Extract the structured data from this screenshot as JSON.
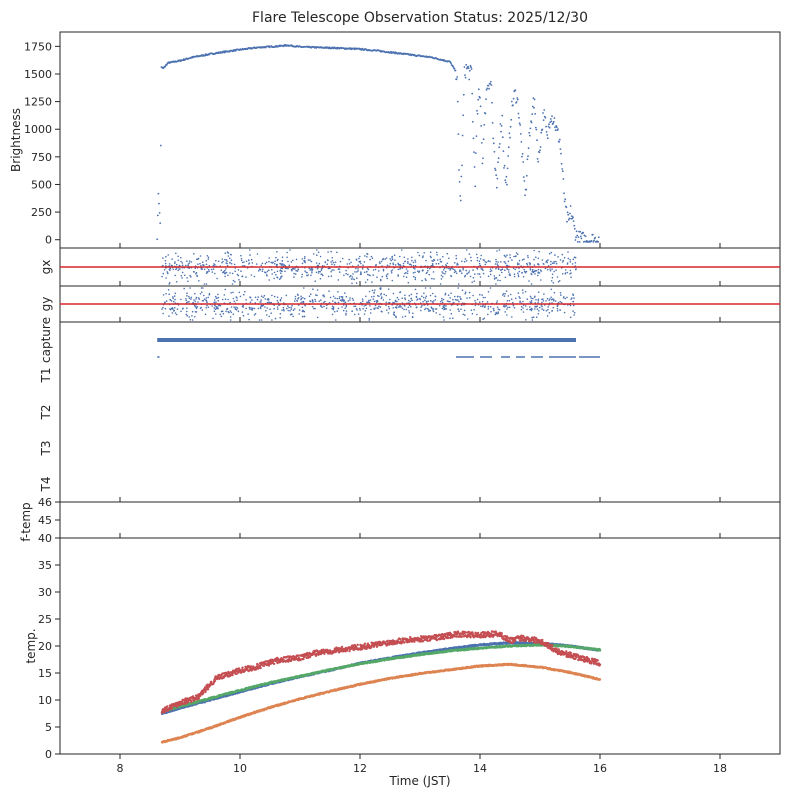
{
  "title": "Flare Telescope Observation Status: 2025/12/30",
  "chart_data": [
    {
      "panel": "brightness",
      "type": "scatter",
      "title": "Flare Telescope Observation Status: 2025/12/30",
      "ylabel": "Brightness",
      "xlim": [
        7,
        19
      ],
      "ylim": [
        -75,
        1880
      ],
      "yticks": [
        0,
        250,
        500,
        750,
        1000,
        1250,
        1500,
        1750
      ],
      "color": "#4c72b0",
      "series": [
        {
          "x": [
            8.62,
            8.64,
            8.67,
            8.69,
            8.72,
            8.8,
            9.0,
            9.2,
            9.5,
            9.8,
            10.0,
            10.3,
            10.6,
            10.8,
            11.0,
            11.3,
            11.6,
            12.0,
            12.3,
            12.6,
            12.9,
            13.2,
            13.5,
            13.62,
            13.65,
            13.68,
            13.71,
            13.74,
            13.77,
            13.8,
            13.83,
            13.86,
            13.89,
            13.92,
            13.95,
            13.98,
            14.01,
            14.04,
            14.07,
            14.1,
            14.13,
            14.16,
            14.19,
            14.22,
            14.25,
            14.28,
            14.31,
            14.34,
            14.37,
            14.4,
            14.43,
            14.46,
            14.49,
            14.52,
            14.55,
            14.58,
            14.61,
            14.64,
            14.67,
            14.7,
            14.73,
            14.76,
            14.79,
            14.82,
            14.85,
            14.88,
            14.91,
            14.94,
            14.97,
            15.0,
            15.03,
            15.06,
            15.09,
            15.12,
            15.15,
            15.18,
            15.21,
            15.24,
            15.27,
            15.3,
            15.33,
            15.36,
            15.39,
            15.42,
            15.45,
            15.48,
            15.51,
            15.54,
            15.57,
            15.6,
            15.63,
            15.66,
            15.69,
            15.72,
            15.75,
            15.78,
            15.81,
            15.84,
            15.87,
            15.9,
            15.93,
            15.96,
            15.99
          ],
          "y": [
            10,
            420,
            150,
            1560,
            1550,
            1600,
            1620,
            1650,
            1680,
            1705,
            1720,
            1740,
            1750,
            1760,
            1745,
            1740,
            1735,
            1725,
            1710,
            1690,
            1670,
            1650,
            1610,
            1500,
            600,
            350,
            900,
            1500,
            1550,
            1540,
            1500,
            1520,
            900,
            550,
            1100,
            1300,
            1250,
            700,
            1000,
            1300,
            1420,
            1430,
            1400,
            900,
            650,
            450,
            800,
            1000,
            1100,
            700,
            500,
            600,
            900,
            1150,
            1250,
            1320,
            1300,
            1200,
            1000,
            800,
            550,
            400,
            700,
            900,
            1050,
            1250,
            1200,
            1000,
            700,
            850,
            1000,
            1150,
            1050,
            900,
            1050,
            1150,
            1100,
            1080,
            1000,
            950,
            900,
            700,
            500,
            300,
            200,
            150,
            250,
            200,
            100,
            50,
            20,
            10,
            5,
            5,
            3,
            2,
            2,
            1,
            1,
            0,
            0,
            0,
            0
          ]
        }
      ]
    },
    {
      "panel": "gx",
      "type": "scatter",
      "ylabel": "gx",
      "xlim": [
        7,
        19
      ],
      "refline_color": "#d62728",
      "color": "#4c72b0",
      "x_range": [
        8.7,
        15.6
      ]
    },
    {
      "panel": "gy",
      "type": "scatter",
      "ylabel": "gy",
      "xlim": [
        7,
        19
      ],
      "refline_color": "#d62728",
      "color": "#4c72b0",
      "x_range": [
        8.7,
        15.6
      ]
    },
    {
      "panel": "status",
      "type": "scatter",
      "ylabel_ticks": [
        "capture",
        "T1",
        "T2",
        "T3",
        "T4"
      ],
      "xlim": [
        7,
        19
      ],
      "color": "#4c72b0",
      "series": [
        {
          "name": "capture",
          "x": [
            8.62,
            15.6
          ]
        },
        {
          "name": "T1",
          "x_segments": [
            [
              8.62,
              8.66
            ],
            [
              13.6,
              13.9
            ],
            [
              14.0,
              14.2
            ],
            [
              14.35,
              14.5
            ],
            [
              14.6,
              14.75
            ],
            [
              14.85,
              15.05
            ],
            [
              15.15,
              15.6
            ],
            [
              15.65,
              16.0
            ]
          ]
        }
      ]
    },
    {
      "panel": "f-temp",
      "type": "scatter",
      "ylabel": "f-temp",
      "xlim": [
        7,
        19
      ],
      "ylim": [
        44,
        46
      ],
      "yticks": [
        45,
        46
      ]
    },
    {
      "panel": "temp",
      "type": "scatter",
      "ylabel": "temp.",
      "xlabel": "Time (JST)",
      "xlim": [
        7,
        19
      ],
      "ylim": [
        0,
        40
      ],
      "xticks": [
        8,
        10,
        12,
        14,
        16,
        18
      ],
      "yticks": [
        0,
        5,
        10,
        15,
        20,
        25,
        30,
        35,
        40
      ],
      "series": [
        {
          "color": "#4c72b0",
          "x": [
            8.7,
            9.0,
            9.5,
            10.0,
            10.5,
            11.0,
            11.5,
            12.0,
            12.5,
            13.0,
            13.5,
            14.0,
            14.5,
            15.0,
            15.5,
            16.0
          ],
          "y": [
            7.5,
            8.5,
            10.0,
            11.5,
            13.0,
            14.3,
            15.5,
            16.8,
            17.8,
            18.7,
            19.5,
            20.2,
            20.6,
            20.5,
            20.0,
            19.2
          ]
        },
        {
          "color": "#55a868",
          "x": [
            8.7,
            9.0,
            9.5,
            10.0,
            10.5,
            11.0,
            11.5,
            12.0,
            12.5,
            13.0,
            13.5,
            14.0,
            14.5,
            15.0,
            15.5,
            16.0
          ],
          "y": [
            7.8,
            8.8,
            10.3,
            11.8,
            13.2,
            14.4,
            15.6,
            16.7,
            17.6,
            18.4,
            19.1,
            19.6,
            20.0,
            20.2,
            19.9,
            19.3
          ]
        },
        {
          "color": "#c44e52",
          "x": [
            8.7,
            9.0,
            9.3,
            9.6,
            10.0,
            10.3,
            10.6,
            11.0,
            11.3,
            11.6,
            12.0,
            12.3,
            12.6,
            13.0,
            13.3,
            13.6,
            14.0,
            14.3,
            14.5,
            14.7,
            15.0,
            15.3,
            15.6,
            16.0
          ],
          "y": [
            8.0,
            9.5,
            10.5,
            14.0,
            15.5,
            16.2,
            17.3,
            17.8,
            18.8,
            19.2,
            19.8,
            20.3,
            20.9,
            21.3,
            21.6,
            22.2,
            22.0,
            22.3,
            21.0,
            21.5,
            21.0,
            19.0,
            18.0,
            16.8
          ]
        },
        {
          "color": "#dd8452",
          "x": [
            8.7,
            9.0,
            9.5,
            10.0,
            10.5,
            11.0,
            11.5,
            12.0,
            12.5,
            13.0,
            13.5,
            14.0,
            14.5,
            15.0,
            15.5,
            16.0
          ],
          "y": [
            2.2,
            3.0,
            4.8,
            6.8,
            8.6,
            10.2,
            11.6,
            12.9,
            14.0,
            14.9,
            15.6,
            16.3,
            16.6,
            16.1,
            15.1,
            13.8
          ]
        }
      ]
    }
  ]
}
